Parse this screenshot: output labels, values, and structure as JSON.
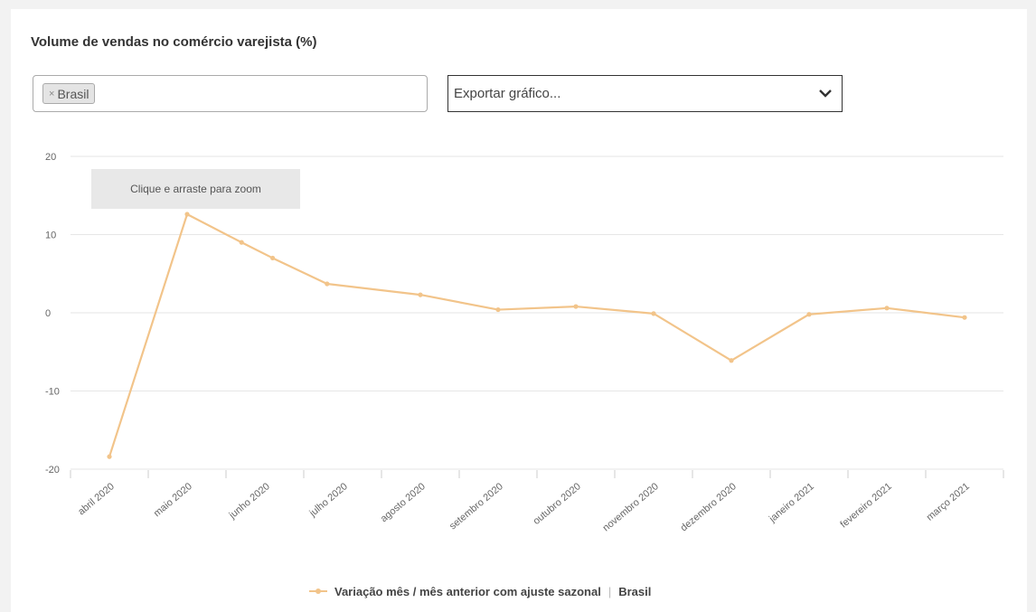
{
  "chart_card": {
    "title": "Volume de vendas no comércio varejista (%)",
    "filter": {
      "tags": [
        {
          "remove_symbol": "×",
          "label": "Brasil"
        }
      ]
    },
    "export": {
      "label": "Exportar gráfico...",
      "icon": "chevron-down-icon"
    },
    "zoom_tooltip": "Clique e arraste para zoom",
    "legend": {
      "series_label": "Variação mês / mês anterior com ajuste sazonal",
      "separator": "|",
      "region_label": "Brasil"
    }
  },
  "colors": {
    "line": "#f2c48a",
    "grid": "#e6e6e6",
    "axis_text": "#666666"
  },
  "chart_data": {
    "type": "line",
    "categories": [
      "abril 2020",
      "maio 2020",
      "junho 2020",
      "julho 2020",
      "agosto 2020",
      "setembro 2020",
      "outubro 2020",
      "novembro 2020",
      "dezembro 2020",
      "janeiro 2021",
      "fevereiro 2021",
      "março 2021"
    ],
    "x_positions": [
      0.5,
      1.5,
      2.5,
      3.5,
      4.5,
      5.5,
      6.5,
      7.5,
      8.5,
      9.5,
      10.5,
      11.5
    ],
    "series": [
      {
        "name": "Variação mês / mês anterior com ajuste sazonal | Brasil",
        "x": [
          0.5,
          1.5,
          2.2,
          2.6,
          3.3,
          4.5,
          5.5,
          6.5,
          7.5,
          8.5,
          9.5,
          10.5,
          11.5
        ],
        "values": [
          -18.4,
          12.6,
          9.0,
          7.0,
          3.7,
          2.3,
          0.4,
          0.8,
          -0.1,
          -6.1,
          -0.2,
          0.6,
          -0.6
        ]
      }
    ],
    "yticks": [
      "20",
      "10",
      "0",
      "-10",
      "-20"
    ],
    "ytick_values": [
      20,
      10,
      0,
      -10,
      -20
    ],
    "ylim": [
      -20,
      20
    ],
    "grid": true,
    "legend_position": "bottom-center"
  }
}
